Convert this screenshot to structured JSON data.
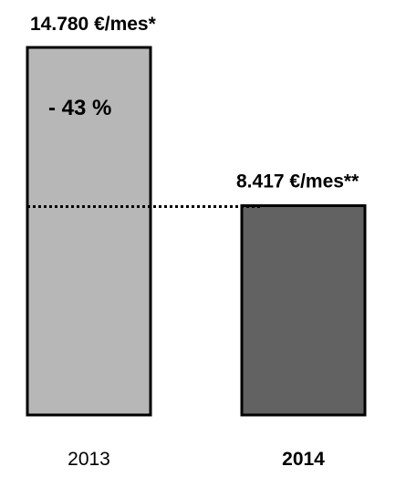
{
  "chart_data": {
    "type": "bar",
    "categories": [
      "2013",
      "2014"
    ],
    "values": [
      14780,
      8417
    ],
    "value_labels": [
      "14.780 €/mes*",
      "8.417 €/mes**"
    ],
    "annotation": "- 43 %",
    "ylim": [
      0,
      14780
    ],
    "grid": false,
    "bar_colors": [
      "#b7b7b7",
      "#626262"
    ],
    "category_bold": [
      false,
      true
    ]
  }
}
